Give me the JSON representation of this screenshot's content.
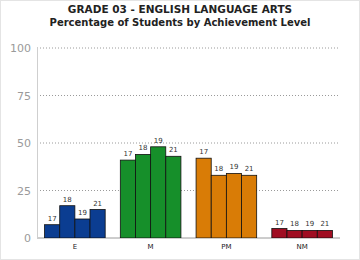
{
  "chart_data": {
    "type": "bar",
    "title": "GRADE 03 - ENGLISH LANGUAGE ARTS",
    "subtitle": "Percentage of Students by Achievement Level",
    "categories": [
      "E",
      "M",
      "PM",
      "NM"
    ],
    "series": [
      {
        "name": "17",
        "values": [
          7,
          41,
          42,
          5
        ],
        "colors": [
          "#0b3d91",
          "#168f2a",
          "#d97c06",
          "#a00d22"
        ]
      },
      {
        "name": "18",
        "values": [
          17,
          44,
          33,
          4
        ],
        "colors": [
          "#0b3d91",
          "#168f2a",
          "#d97c06",
          "#a00d22"
        ]
      },
      {
        "name": "19",
        "values": [
          10,
          48,
          34,
          4
        ],
        "colors": [
          "#0b3d91",
          "#168f2a",
          "#d97c06",
          "#a00d22"
        ]
      },
      {
        "name": "21",
        "values": [
          15,
          43,
          33,
          4
        ],
        "colors": [
          "#0b3d91",
          "#168f2a",
          "#d97c06",
          "#a00d22"
        ]
      }
    ],
    "ylim": [
      0,
      100
    ],
    "yticks": [
      0,
      25,
      50,
      75,
      100
    ],
    "grid": true
  }
}
